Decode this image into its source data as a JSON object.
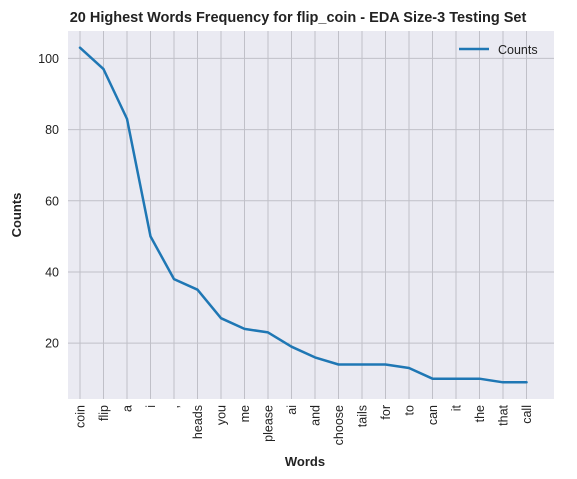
{
  "chart_data": {
    "type": "line",
    "title": "20 Highest Words Frequency for flip_coin - EDA Size-3 Testing Set",
    "xlabel": "Words",
    "ylabel": "Counts",
    "categories": [
      "coin",
      "flip",
      "a",
      "i",
      ",",
      "heads",
      "you",
      "me",
      "please",
      "ai",
      "and",
      "choose",
      "tails",
      "for",
      "to",
      "can",
      "it",
      "the",
      "that",
      "call"
    ],
    "series": [
      {
        "name": "Counts",
        "values": [
          103,
          97,
          83,
          50,
          38,
          35,
          27,
          24,
          23,
          19,
          16,
          14,
          14,
          14,
          13,
          10,
          10,
          10,
          9,
          9
        ]
      }
    ],
    "yticks": [
      20,
      40,
      60,
      80,
      100
    ],
    "ylim": [
      4.3,
      107.7
    ],
    "grid": true,
    "legend_position": "top-right",
    "colors": {
      "line": "#1f77b4",
      "plot_background": "#eaeaf2",
      "grid": "#c0c0c8"
    }
  }
}
